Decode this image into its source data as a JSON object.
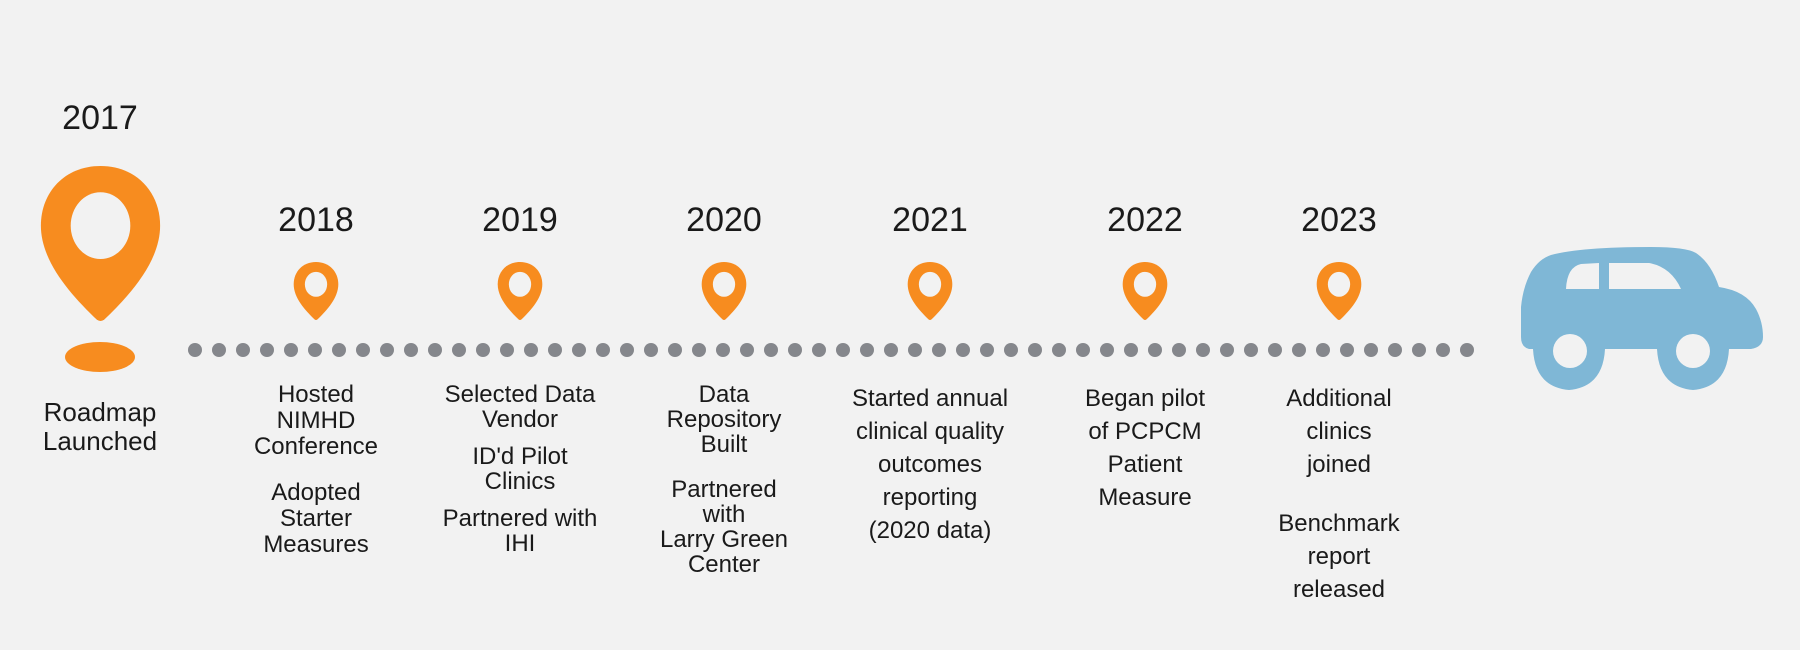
{
  "colors": {
    "background": "#f2f2f2",
    "pin": "#f78c1f",
    "dots": "#85878c",
    "car": "#7fb7d6",
    "text": "#1a1a1a"
  },
  "icons": {
    "milestone": "map-pin-icon",
    "start_shadow": "pin-shadow",
    "end": "car-icon"
  },
  "milestones": [
    {
      "year": "2017",
      "paragraphs": [
        [
          "Roadmap",
          "Launched"
        ]
      ]
    },
    {
      "year": "2018",
      "paragraphs": [
        [
          "Hosted",
          "NIMHD",
          "Conference"
        ],
        [
          "Adopted",
          "Starter",
          "Measures"
        ]
      ]
    },
    {
      "year": "2019",
      "paragraphs": [
        [
          "Selected Data",
          "Vendor"
        ],
        [
          "ID'd Pilot",
          "Clinics"
        ],
        [
          "Partnered with",
          "IHI"
        ]
      ]
    },
    {
      "year": "2020",
      "paragraphs": [
        [
          "Data",
          "Repository",
          "Built"
        ],
        [
          "Partnered",
          "with",
          "Larry Green",
          "Center"
        ]
      ]
    },
    {
      "year": "2021",
      "paragraphs": [
        [
          "Started annual",
          "clinical quality",
          "outcomes",
          "reporting",
          "(2020 data)"
        ]
      ]
    },
    {
      "year": "2022",
      "paragraphs": [
        [
          "Began pilot",
          "of PCPCM",
          "Patient",
          "Measure"
        ]
      ]
    },
    {
      "year": "2023",
      "paragraphs": [
        [
          "Additional",
          "clinics",
          "joined"
        ],
        [
          "Benchmark",
          "report",
          "released"
        ]
      ]
    }
  ]
}
